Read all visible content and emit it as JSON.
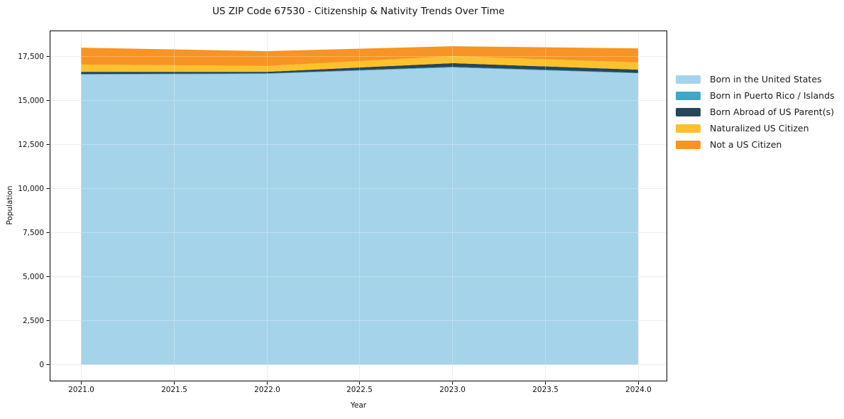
{
  "chart_data": {
    "type": "area",
    "stacked": true,
    "title": "US ZIP Code 67530 - Citizenship & Nativity Trends Over Time",
    "xlabel": "Year",
    "ylabel": "Population",
    "x": [
      2021,
      2022,
      2023,
      2024
    ],
    "series": [
      {
        "name": "Born in the United States",
        "color": "#a5d3ea",
        "values": [
          16450,
          16490,
          16850,
          16520
        ]
      },
      {
        "name": "Born in Puerto Rico / Islands",
        "color": "#3fa8c6",
        "values": [
          30,
          30,
          40,
          30
        ]
      },
      {
        "name": "Born Abroad of US Parent(s)",
        "color": "#26465a",
        "values": [
          130,
          90,
          210,
          180
        ]
      },
      {
        "name": "Naturalized US Citizen",
        "color": "#fcc22c",
        "values": [
          410,
          330,
          400,
          410
        ]
      },
      {
        "name": "Not a US Citizen",
        "color": "#f79423",
        "values": [
          960,
          840,
          560,
          800
        ]
      }
    ],
    "x_ticks": [
      {
        "label": "2021.0",
        "value": 2021.0
      },
      {
        "label": "2021.5",
        "value": 2021.5
      },
      {
        "label": "2022.0",
        "value": 2022.0
      },
      {
        "label": "2022.5",
        "value": 2022.5
      },
      {
        "label": "2023.0",
        "value": 2023.0
      },
      {
        "label": "2023.5",
        "value": 2023.5
      },
      {
        "label": "2024.0",
        "value": 2024.0
      }
    ],
    "y_ticks": [
      {
        "label": "0",
        "value": 0
      },
      {
        "label": "2,500",
        "value": 2500
      },
      {
        "label": "5,000",
        "value": 5000
      },
      {
        "label": "7,500",
        "value": 7500
      },
      {
        "label": "10,000",
        "value": 10000
      },
      {
        "label": "12,500",
        "value": 12500
      },
      {
        "label": "15,000",
        "value": 15000
      },
      {
        "label": "17,500",
        "value": 17500
      }
    ],
    "xlim": [
      2020.832,
      2024.157
    ],
    "ylim": [
      -950,
      18950
    ],
    "grid": true,
    "legend_position": "right",
    "colors": {
      "grid": "#e8e8e8",
      "spine": "#000000",
      "text": "#111111",
      "background": "#ffffff"
    }
  }
}
